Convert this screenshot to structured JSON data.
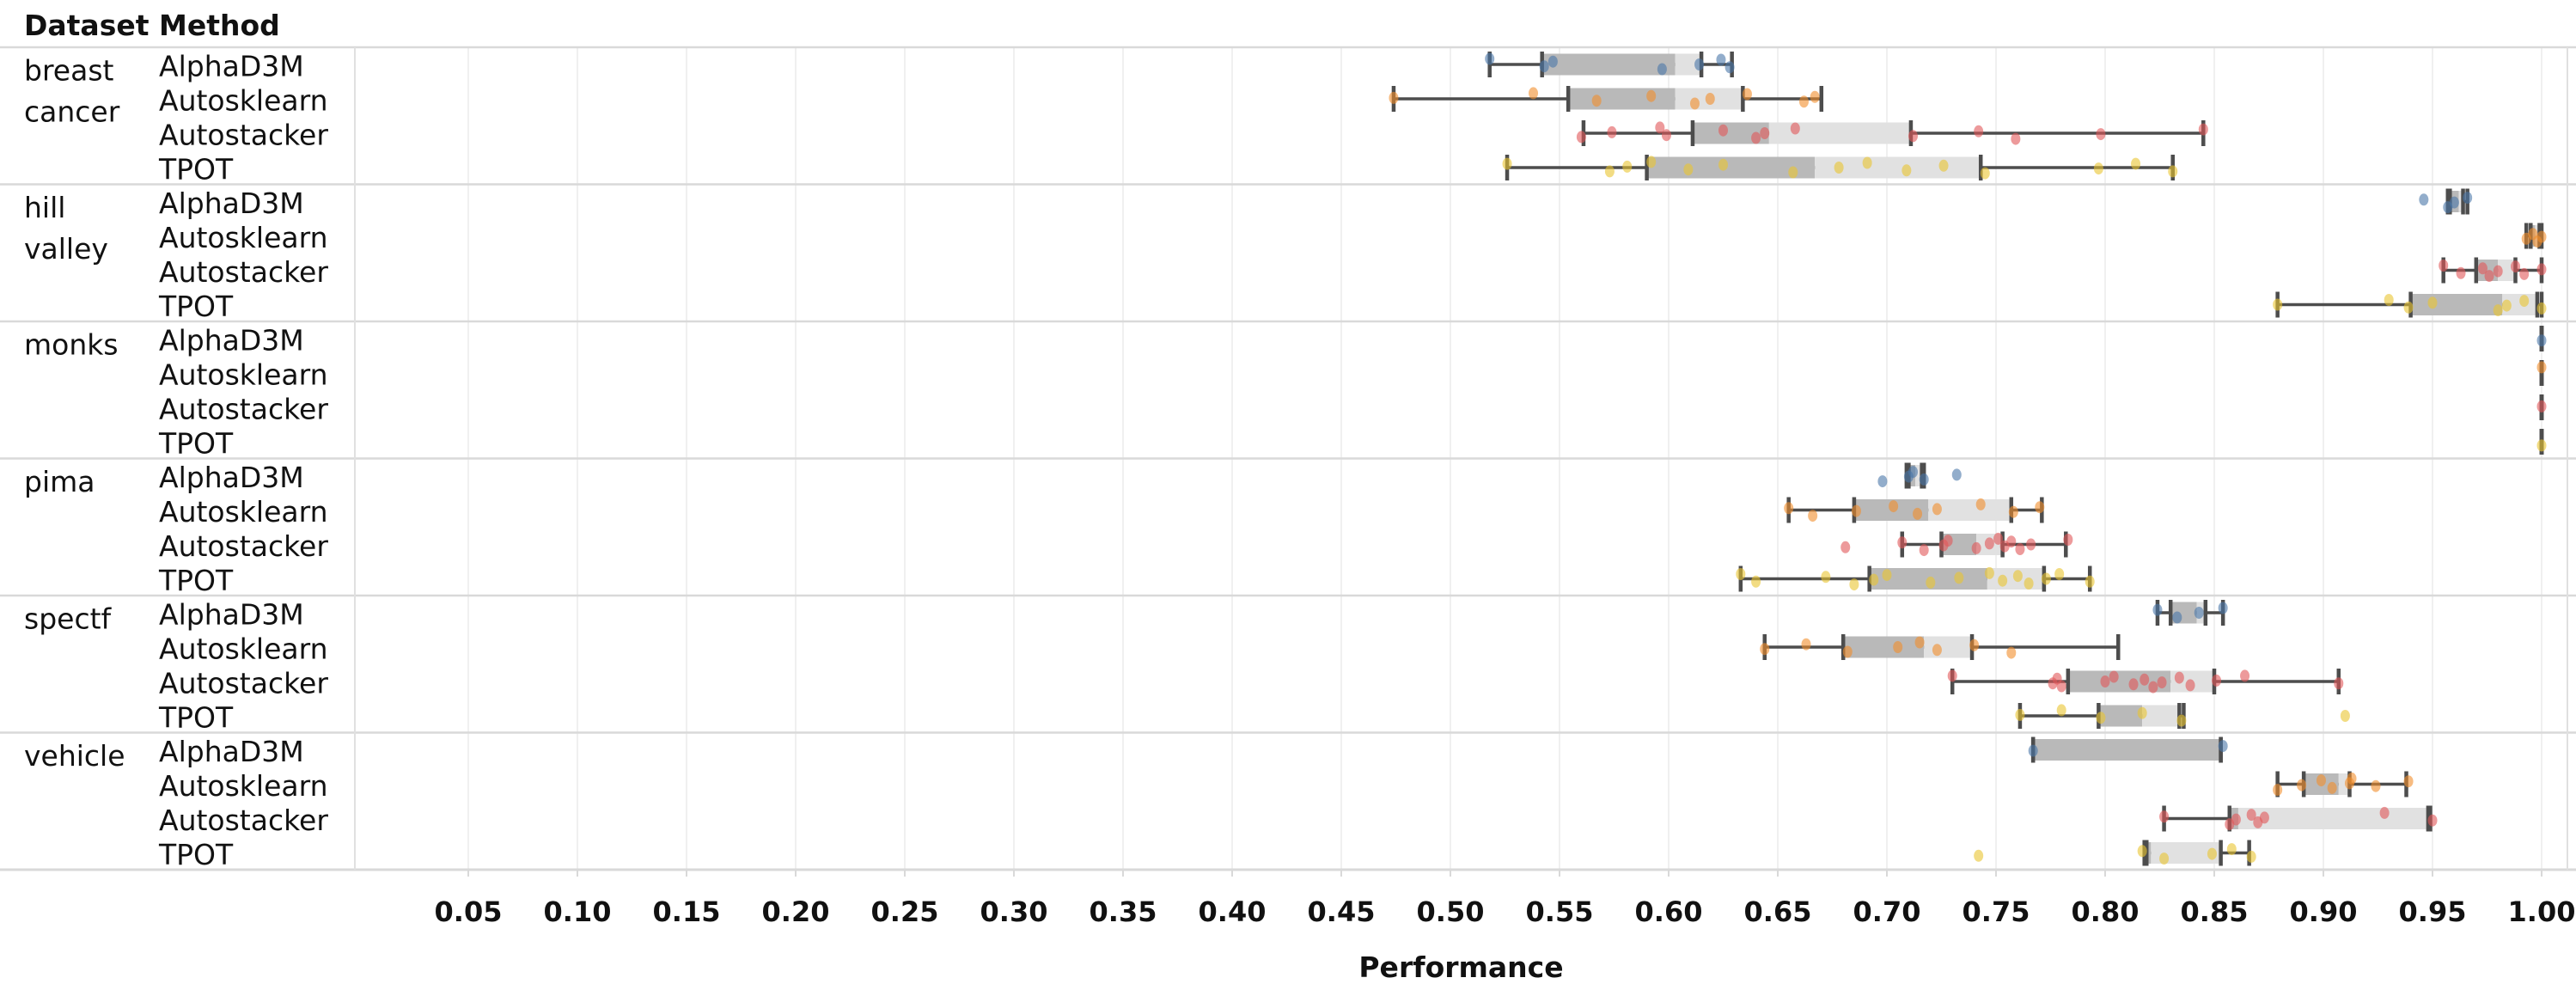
{
  "header": {
    "dataset": "Dataset",
    "method": "Method"
  },
  "axis": {
    "label": "Performance",
    "tick_labels": [
      "0.05",
      "0.10",
      "0.15",
      "0.20",
      "0.25",
      "0.30",
      "0.35",
      "0.40",
      "0.45",
      "0.50",
      "0.55",
      "0.60",
      "0.65",
      "0.70",
      "0.75",
      "0.80",
      "0.85",
      "0.90",
      "0.95",
      "1.00"
    ],
    "tick_values": [
      0.05,
      0.1,
      0.15,
      0.2,
      0.25,
      0.3,
      0.35,
      0.4,
      0.45,
      0.5,
      0.55,
      0.6,
      0.65,
      0.7,
      0.75,
      0.8,
      0.85,
      0.9,
      0.95,
      1.0
    ]
  },
  "palette": {
    "AlphaD3M": "#4a77a8",
    "Autosklearn": "#f28e2b",
    "Autostacker": "#e15759",
    "TPOT": "#e9c431"
  },
  "style_colors": {
    "box_lower": "#b9b9b9",
    "box_upper": "#e1e1e1",
    "whisker": "#4d4d4d",
    "gridline": "#f0f0f0",
    "separator": "#d9d9d9",
    "text": "#111111"
  },
  "chart_data": {
    "type": "boxplot",
    "orientation": "horizontal",
    "xlabel": "Performance",
    "xlim": [
      0.05,
      1.0
    ],
    "grid": true,
    "methods_per_dataset": [
      "AlphaD3M",
      "Autosklearn",
      "Autostacker",
      "TPOT"
    ],
    "groups": [
      {
        "dataset": "breast cancer",
        "label_lines": [
          "breast",
          "cancer"
        ],
        "rows": [
          {
            "method": "AlphaD3M",
            "min": 0.518,
            "q1": 0.542,
            "median": 0.603,
            "q3": 0.615,
            "max": 0.629,
            "points": [
              0.518,
              0.543,
              0.547,
              0.597,
              0.614,
              0.624,
              0.628
            ]
          },
          {
            "method": "Autosklearn",
            "min": 0.474,
            "q1": 0.554,
            "median": 0.603,
            "q3": 0.634,
            "max": 0.67,
            "points": [
              0.474,
              0.538,
              0.567,
              0.592,
              0.612,
              0.619,
              0.636,
              0.662,
              0.667
            ]
          },
          {
            "method": "Autostacker",
            "min": 0.561,
            "q1": 0.611,
            "median": 0.646,
            "q3": 0.711,
            "max": 0.845,
            "points": [
              0.56,
              0.574,
              0.596,
              0.599,
              0.625,
              0.64,
              0.644,
              0.658,
              0.712,
              0.742,
              0.759,
              0.798,
              0.845
            ]
          },
          {
            "method": "TPOT",
            "min": 0.526,
            "q1": 0.59,
            "median": 0.667,
            "q3": 0.743,
            "max": 0.831,
            "points": [
              0.526,
              0.573,
              0.581,
              0.592,
              0.609,
              0.625,
              0.657,
              0.678,
              0.691,
              0.709,
              0.726,
              0.745,
              0.797,
              0.814,
              0.831
            ]
          }
        ]
      },
      {
        "dataset": "hill valley",
        "label_lines": [
          "hill",
          "valley"
        ],
        "rows": [
          {
            "method": "AlphaD3M",
            "min": 0.957,
            "q1": 0.958,
            "median": 0.962,
            "q3": 0.964,
            "max": 0.966,
            "points": [
              0.946,
              0.957,
              0.96,
              0.966
            ]
          },
          {
            "method": "Autosklearn",
            "min": 0.993,
            "q1": 0.995,
            "median": 0.997,
            "q3": 0.999,
            "max": 1.0,
            "points": [
              0.993,
              0.996,
              0.998,
              1.0
            ]
          },
          {
            "method": "Autostacker",
            "min": 0.955,
            "q1": 0.97,
            "median": 0.98,
            "q3": 0.988,
            "max": 1.0,
            "points": [
              0.955,
              0.963,
              0.973,
              0.976,
              0.98,
              0.988,
              0.992,
              1.0
            ]
          },
          {
            "method": "TPOT",
            "min": 0.879,
            "q1": 0.94,
            "median": 0.982,
            "q3": 0.998,
            "max": 1.0,
            "points": [
              0.879,
              0.93,
              0.939,
              0.95,
              0.98,
              0.984,
              0.992,
              1.0
            ]
          }
        ]
      },
      {
        "dataset": "monks",
        "label_lines": [
          "monks"
        ],
        "rows": [
          {
            "method": "AlphaD3M",
            "min": 1.0,
            "q1": 1.0,
            "median": 1.0,
            "q3": 1.0,
            "max": 1.0,
            "points": [
              1.0
            ]
          },
          {
            "method": "Autosklearn",
            "min": 1.0,
            "q1": 1.0,
            "median": 1.0,
            "q3": 1.0,
            "max": 1.0,
            "points": [
              1.0
            ]
          },
          {
            "method": "Autostacker",
            "min": 1.0,
            "q1": 1.0,
            "median": 1.0,
            "q3": 1.0,
            "max": 1.0,
            "points": [
              1.0
            ]
          },
          {
            "method": "TPOT",
            "min": 1.0,
            "q1": 1.0,
            "median": 1.0,
            "q3": 1.0,
            "max": 1.0,
            "points": [
              1.0
            ]
          }
        ]
      },
      {
        "dataset": "pima",
        "label_lines": [
          "pima"
        ],
        "rows": [
          {
            "method": "AlphaD3M",
            "min": 0.709,
            "q1": 0.71,
            "median": 0.713,
            "q3": 0.716,
            "max": 0.717,
            "points": [
              0.698,
              0.71,
              0.712,
              0.717,
              0.732
            ]
          },
          {
            "method": "Autosklearn",
            "min": 0.655,
            "q1": 0.685,
            "median": 0.719,
            "q3": 0.757,
            "max": 0.771,
            "points": [
              0.655,
              0.666,
              0.686,
              0.703,
              0.714,
              0.723,
              0.743,
              0.758,
              0.77
            ]
          },
          {
            "method": "Autostacker",
            "min": 0.707,
            "q1": 0.725,
            "median": 0.741,
            "q3": 0.753,
            "max": 0.782,
            "points": [
              0.681,
              0.707,
              0.717,
              0.726,
              0.728,
              0.741,
              0.747,
              0.751,
              0.754,
              0.757,
              0.761,
              0.766,
              0.783
            ]
          },
          {
            "method": "TPOT",
            "min": 0.633,
            "q1": 0.692,
            "median": 0.746,
            "q3": 0.772,
            "max": 0.793,
            "points": [
              0.633,
              0.64,
              0.672,
              0.685,
              0.694,
              0.7,
              0.72,
              0.733,
              0.747,
              0.753,
              0.76,
              0.765,
              0.773,
              0.779,
              0.793
            ]
          }
        ]
      },
      {
        "dataset": "spectf",
        "label_lines": [
          "spectf"
        ],
        "rows": [
          {
            "method": "AlphaD3M",
            "min": 0.824,
            "q1": 0.83,
            "median": 0.842,
            "q3": 0.846,
            "max": 0.854,
            "points": [
              0.824,
              0.833,
              0.843,
              0.854
            ]
          },
          {
            "method": "Autosklearn",
            "min": 0.644,
            "q1": 0.68,
            "median": 0.717,
            "q3": 0.739,
            "max": 0.806,
            "points": [
              0.644,
              0.663,
              0.682,
              0.705,
              0.715,
              0.723,
              0.74,
              0.757
            ]
          },
          {
            "method": "Autostacker",
            "min": 0.73,
            "q1": 0.783,
            "median": 0.83,
            "q3": 0.85,
            "max": 0.907,
            "points": [
              0.73,
              0.776,
              0.778,
              0.78,
              0.8,
              0.804,
              0.813,
              0.818,
              0.822,
              0.826,
              0.834,
              0.839,
              0.851,
              0.864,
              0.907
            ]
          },
          {
            "method": "TPOT",
            "min": 0.761,
            "q1": 0.797,
            "median": 0.817,
            "q3": 0.834,
            "max": 0.836,
            "points": [
              0.761,
              0.78,
              0.798,
              0.817,
              0.835,
              0.91
            ]
          }
        ]
      },
      {
        "dataset": "vehicle",
        "label_lines": [
          "vehicle"
        ],
        "rows": [
          {
            "method": "AlphaD3M",
            "min": 0.767,
            "q1": 0.767,
            "median": 0.853,
            "q3": 0.853,
            "max": 0.853,
            "points": [
              0.767,
              0.854
            ]
          },
          {
            "method": "Autosklearn",
            "min": 0.879,
            "q1": 0.891,
            "median": 0.907,
            "q3": 0.912,
            "max": 0.938,
            "points": [
              0.879,
              0.89,
              0.899,
              0.904,
              0.912,
              0.913,
              0.924,
              0.939
            ]
          },
          {
            "method": "Autostacker",
            "min": 0.827,
            "q1": 0.857,
            "median": 0.861,
            "q3": 0.948,
            "max": 0.949,
            "points": [
              0.827,
              0.857,
              0.86,
              0.867,
              0.87,
              0.873,
              0.928,
              0.95
            ]
          },
          {
            "method": "TPOT",
            "min": 0.818,
            "q1": 0.819,
            "median": 0.821,
            "q3": 0.853,
            "max": 0.866,
            "points": [
              0.742,
              0.817,
              0.827,
              0.849,
              0.858,
              0.867
            ]
          }
        ]
      }
    ]
  }
}
